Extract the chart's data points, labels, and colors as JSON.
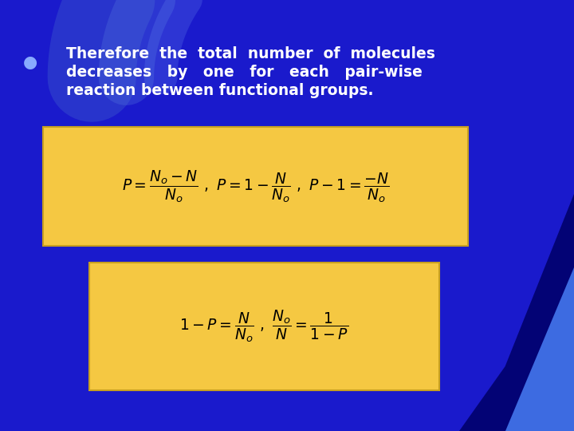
{
  "bg_color": "#1a1acc",
  "bullet_color": "#88aaff",
  "text_color": "#ffffff",
  "box_color": "#f5c842",
  "box_edge_color": "#c8a020",
  "title_line1": "Therefore  the  total  number  of  molecules",
  "title_line2": "decreases   by   one   for   each   pair-wise",
  "title_line3": "reaction between functional groups.",
  "bullet": "●"
}
